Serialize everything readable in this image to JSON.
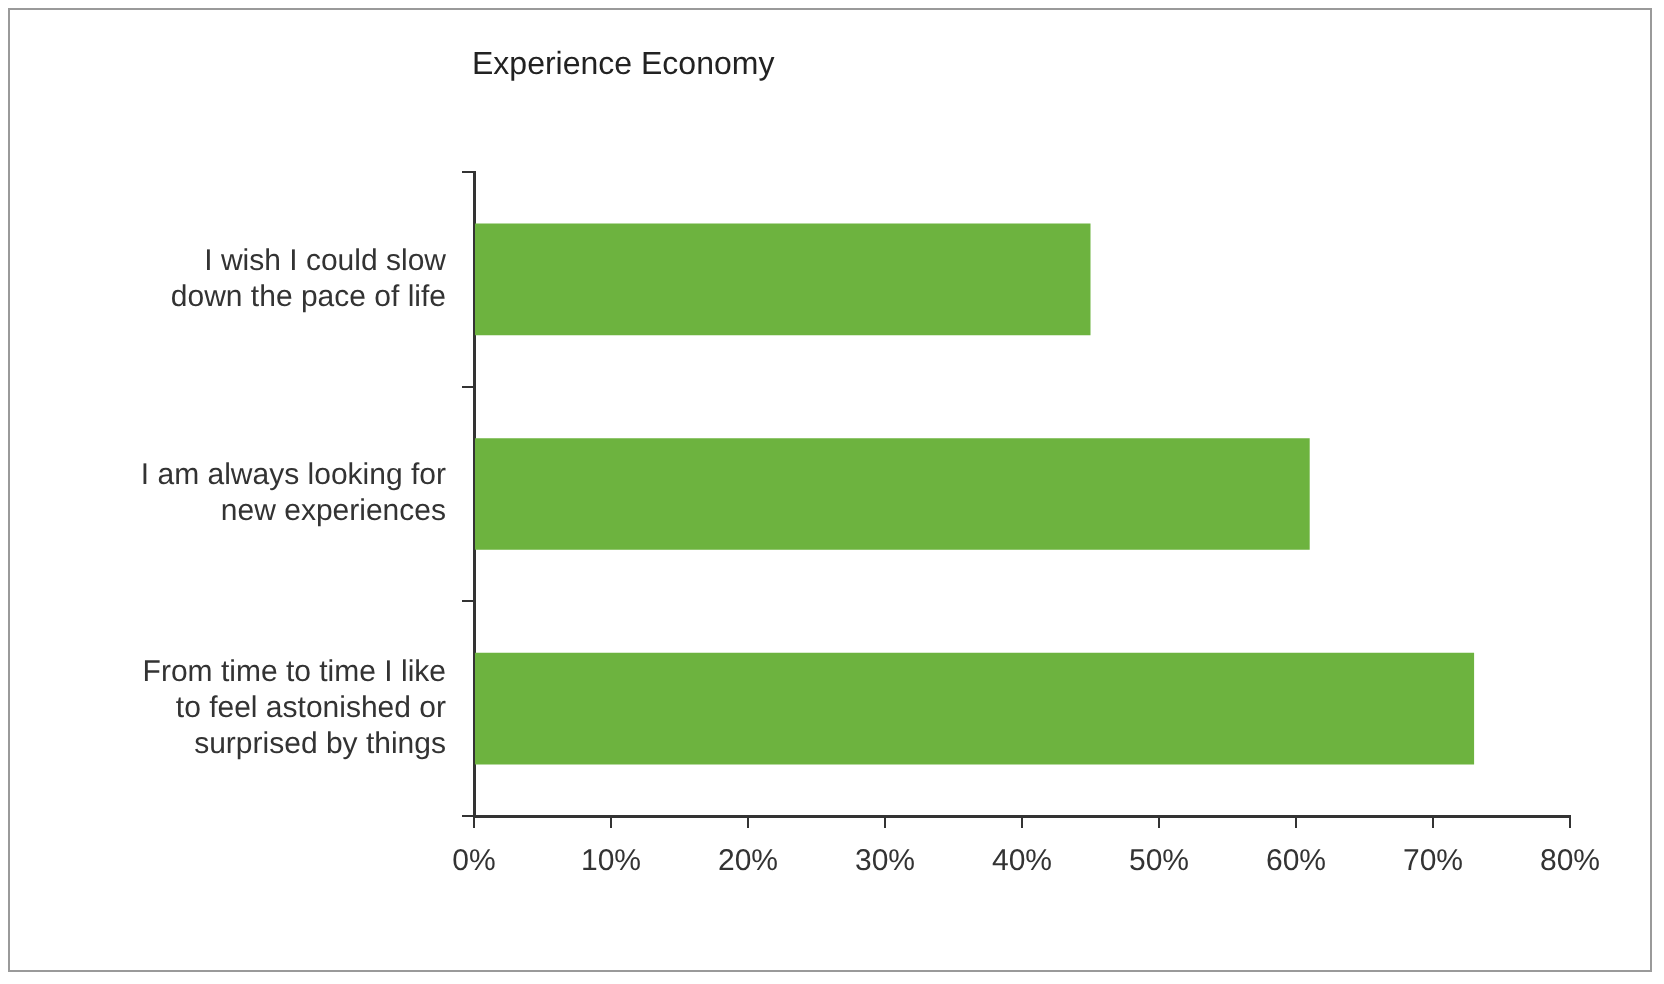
{
  "chart_data": {
    "type": "bar",
    "orientation": "horizontal",
    "title": "Experience Economy",
    "categories": [
      "I wish I could slow\ndown the pace of life",
      "I am always looking for\nnew experiences",
      "From time to time I like\nto feel astonished or\nsurprised by things"
    ],
    "values": [
      45,
      61,
      73
    ],
    "color": "#6db33f",
    "xlim": [
      0,
      80
    ],
    "xticks": [
      {
        "value": 0,
        "label": "0%"
      },
      {
        "value": 10,
        "label": "10%"
      },
      {
        "value": 20,
        "label": "20%"
      },
      {
        "value": 30,
        "label": "30%"
      },
      {
        "value": 40,
        "label": "40%"
      },
      {
        "value": 50,
        "label": "50%"
      },
      {
        "value": 60,
        "label": "60%"
      },
      {
        "value": 70,
        "label": "70%"
      },
      {
        "value": 80,
        "label": "80%"
      }
    ],
    "grid": false,
    "legend": false
  }
}
